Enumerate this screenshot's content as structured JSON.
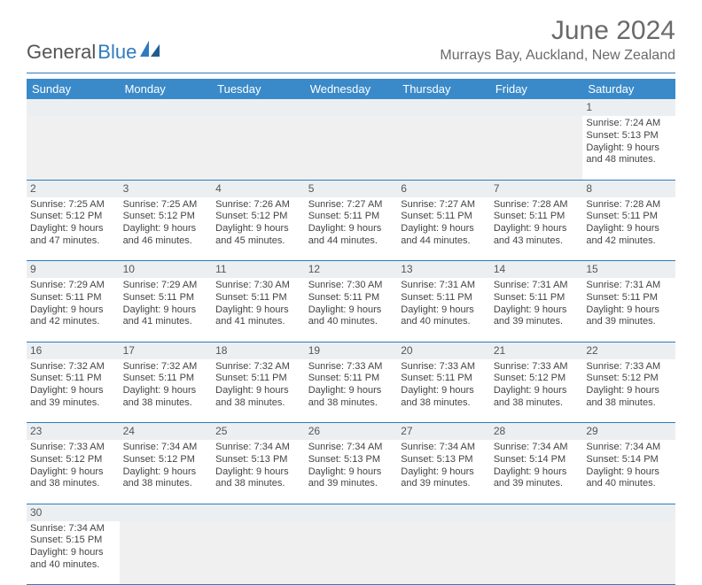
{
  "logo": {
    "text1": "General",
    "text2": "Blue"
  },
  "colors": {
    "header_bg": "#3a8ac9",
    "accent": "#2f7bbf",
    "text": "#444",
    "muted": "#6a6a6a",
    "stripe": "#eceff1",
    "empty": "#f0f0f0"
  },
  "title": "June 2024",
  "location": "Murrays Bay, Auckland, New Zealand",
  "day_headers": [
    "Sunday",
    "Monday",
    "Tuesday",
    "Wednesday",
    "Thursday",
    "Friday",
    "Saturday"
  ],
  "weeks": [
    [
      null,
      null,
      null,
      null,
      null,
      null,
      {
        "n": "1",
        "sr": "Sunrise: 7:24 AM",
        "ss": "Sunset: 5:13 PM",
        "dl1": "Daylight: 9 hours",
        "dl2": "and 48 minutes."
      }
    ],
    [
      {
        "n": "2",
        "sr": "Sunrise: 7:25 AM",
        "ss": "Sunset: 5:12 PM",
        "dl1": "Daylight: 9 hours",
        "dl2": "and 47 minutes."
      },
      {
        "n": "3",
        "sr": "Sunrise: 7:25 AM",
        "ss": "Sunset: 5:12 PM",
        "dl1": "Daylight: 9 hours",
        "dl2": "and 46 minutes."
      },
      {
        "n": "4",
        "sr": "Sunrise: 7:26 AM",
        "ss": "Sunset: 5:12 PM",
        "dl1": "Daylight: 9 hours",
        "dl2": "and 45 minutes."
      },
      {
        "n": "5",
        "sr": "Sunrise: 7:27 AM",
        "ss": "Sunset: 5:11 PM",
        "dl1": "Daylight: 9 hours",
        "dl2": "and 44 minutes."
      },
      {
        "n": "6",
        "sr": "Sunrise: 7:27 AM",
        "ss": "Sunset: 5:11 PM",
        "dl1": "Daylight: 9 hours",
        "dl2": "and 44 minutes."
      },
      {
        "n": "7",
        "sr": "Sunrise: 7:28 AM",
        "ss": "Sunset: 5:11 PM",
        "dl1": "Daylight: 9 hours",
        "dl2": "and 43 minutes."
      },
      {
        "n": "8",
        "sr": "Sunrise: 7:28 AM",
        "ss": "Sunset: 5:11 PM",
        "dl1": "Daylight: 9 hours",
        "dl2": "and 42 minutes."
      }
    ],
    [
      {
        "n": "9",
        "sr": "Sunrise: 7:29 AM",
        "ss": "Sunset: 5:11 PM",
        "dl1": "Daylight: 9 hours",
        "dl2": "and 42 minutes."
      },
      {
        "n": "10",
        "sr": "Sunrise: 7:29 AM",
        "ss": "Sunset: 5:11 PM",
        "dl1": "Daylight: 9 hours",
        "dl2": "and 41 minutes."
      },
      {
        "n": "11",
        "sr": "Sunrise: 7:30 AM",
        "ss": "Sunset: 5:11 PM",
        "dl1": "Daylight: 9 hours",
        "dl2": "and 41 minutes."
      },
      {
        "n": "12",
        "sr": "Sunrise: 7:30 AM",
        "ss": "Sunset: 5:11 PM",
        "dl1": "Daylight: 9 hours",
        "dl2": "and 40 minutes."
      },
      {
        "n": "13",
        "sr": "Sunrise: 7:31 AM",
        "ss": "Sunset: 5:11 PM",
        "dl1": "Daylight: 9 hours",
        "dl2": "and 40 minutes."
      },
      {
        "n": "14",
        "sr": "Sunrise: 7:31 AM",
        "ss": "Sunset: 5:11 PM",
        "dl1": "Daylight: 9 hours",
        "dl2": "and 39 minutes."
      },
      {
        "n": "15",
        "sr": "Sunrise: 7:31 AM",
        "ss": "Sunset: 5:11 PM",
        "dl1": "Daylight: 9 hours",
        "dl2": "and 39 minutes."
      }
    ],
    [
      {
        "n": "16",
        "sr": "Sunrise: 7:32 AM",
        "ss": "Sunset: 5:11 PM",
        "dl1": "Daylight: 9 hours",
        "dl2": "and 39 minutes."
      },
      {
        "n": "17",
        "sr": "Sunrise: 7:32 AM",
        "ss": "Sunset: 5:11 PM",
        "dl1": "Daylight: 9 hours",
        "dl2": "and 38 minutes."
      },
      {
        "n": "18",
        "sr": "Sunrise: 7:32 AM",
        "ss": "Sunset: 5:11 PM",
        "dl1": "Daylight: 9 hours",
        "dl2": "and 38 minutes."
      },
      {
        "n": "19",
        "sr": "Sunrise: 7:33 AM",
        "ss": "Sunset: 5:11 PM",
        "dl1": "Daylight: 9 hours",
        "dl2": "and 38 minutes."
      },
      {
        "n": "20",
        "sr": "Sunrise: 7:33 AM",
        "ss": "Sunset: 5:11 PM",
        "dl1": "Daylight: 9 hours",
        "dl2": "and 38 minutes."
      },
      {
        "n": "21",
        "sr": "Sunrise: 7:33 AM",
        "ss": "Sunset: 5:12 PM",
        "dl1": "Daylight: 9 hours",
        "dl2": "and 38 minutes."
      },
      {
        "n": "22",
        "sr": "Sunrise: 7:33 AM",
        "ss": "Sunset: 5:12 PM",
        "dl1": "Daylight: 9 hours",
        "dl2": "and 38 minutes."
      }
    ],
    [
      {
        "n": "23",
        "sr": "Sunrise: 7:33 AM",
        "ss": "Sunset: 5:12 PM",
        "dl1": "Daylight: 9 hours",
        "dl2": "and 38 minutes."
      },
      {
        "n": "24",
        "sr": "Sunrise: 7:34 AM",
        "ss": "Sunset: 5:12 PM",
        "dl1": "Daylight: 9 hours",
        "dl2": "and 38 minutes."
      },
      {
        "n": "25",
        "sr": "Sunrise: 7:34 AM",
        "ss": "Sunset: 5:13 PM",
        "dl1": "Daylight: 9 hours",
        "dl2": "and 38 minutes."
      },
      {
        "n": "26",
        "sr": "Sunrise: 7:34 AM",
        "ss": "Sunset: 5:13 PM",
        "dl1": "Daylight: 9 hours",
        "dl2": "and 39 minutes."
      },
      {
        "n": "27",
        "sr": "Sunrise: 7:34 AM",
        "ss": "Sunset: 5:13 PM",
        "dl1": "Daylight: 9 hours",
        "dl2": "and 39 minutes."
      },
      {
        "n": "28",
        "sr": "Sunrise: 7:34 AM",
        "ss": "Sunset: 5:14 PM",
        "dl1": "Daylight: 9 hours",
        "dl2": "and 39 minutes."
      },
      {
        "n": "29",
        "sr": "Sunrise: 7:34 AM",
        "ss": "Sunset: 5:14 PM",
        "dl1": "Daylight: 9 hours",
        "dl2": "and 40 minutes."
      }
    ],
    [
      {
        "n": "30",
        "sr": "Sunrise: 7:34 AM",
        "ss": "Sunset: 5:15 PM",
        "dl1": "Daylight: 9 hours",
        "dl2": "and 40 minutes."
      },
      null,
      null,
      null,
      null,
      null,
      null
    ]
  ]
}
